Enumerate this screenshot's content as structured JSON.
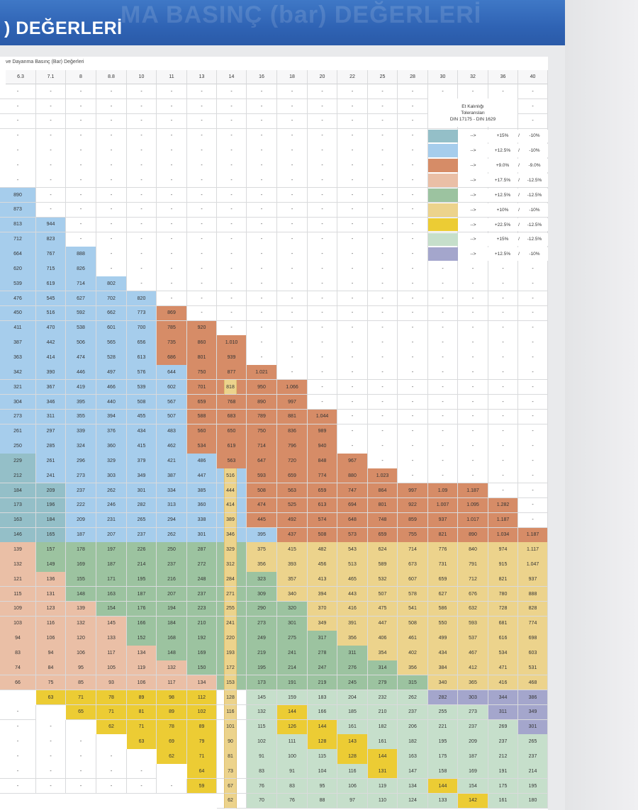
{
  "header": {
    "title": ") DEĞERLERİ",
    "ghost_title": "MA BASINÇ (bar) DEĞERLERİ"
  },
  "caption": "ve Dayanma Basınç (Bar) Değerleri",
  "columns": [
    "6.3",
    "7.1",
    "8",
    "8.8",
    "10",
    "11",
    "13",
    "14",
    "16",
    "18",
    "20",
    "22",
    "25",
    "28",
    "30",
    "32",
    "36",
    "40"
  ],
  "colors": {
    "B": "#a6cdec",
    "T": "#94bfc8",
    "O": "#d68c67",
    "P": "#eabfa6",
    "G": "#9cc3a0",
    "Y": "#ecd38c",
    "Z": "#eccc34",
    "M": "#c6dfcb",
    "V": "#a4a6cc",
    "W": "#ffffff",
    "N": "#ffffff"
  },
  "legend": {
    "title_line1": "Et Kalınlığı",
    "title_line2": "Toleransları",
    "title_line3": "DIN 17175 - DIN 1629",
    "items": [
      {
        "color": "T",
        "arrow": "-->",
        "plus": "+15%",
        "slash": "/",
        "minus": "-10%"
      },
      {
        "color": "B",
        "arrow": "-->",
        "plus": "+12.5%",
        "slash": "/",
        "minus": "-10%"
      },
      {
        "color": "O",
        "arrow": "-->",
        "plus": "+9.0%",
        "slash": "/",
        "minus": "-9.0%"
      },
      {
        "color": "P",
        "arrow": "-->",
        "plus": "+17.5%",
        "slash": "/",
        "minus": "-12.5%"
      },
      {
        "color": "G",
        "arrow": "-->",
        "plus": "+12.5%",
        "slash": "/",
        "minus": "-12.5%"
      },
      {
        "color": "Y",
        "arrow": "-->",
        "plus": "+10%",
        "slash": "/",
        "minus": "-10%"
      },
      {
        "color": "Z",
        "arrow": "-->",
        "plus": "+22.5%",
        "slash": "/",
        "minus": "-12.5%"
      },
      {
        "color": "M",
        "arrow": "-->",
        "plus": "+15%",
        "slash": "/",
        "minus": "-12.5%"
      },
      {
        "color": "V",
        "arrow": "-->",
        "plus": "+12.5%",
        "slash": "/",
        "minus": "-10%"
      }
    ]
  },
  "rows": [
    {
      "v": [
        "-",
        "-",
        "-",
        "-",
        "-",
        "-",
        "-",
        "-",
        "-",
        "-",
        "-",
        "-",
        "-",
        "-",
        "-",
        "-",
        "-",
        "-"
      ],
      "c": "WWWWWWWWWWWWWWWWWW"
    },
    {
      "v": [
        "-",
        "-",
        "-",
        "-",
        "-",
        "-",
        "-",
        "-",
        "-",
        "-",
        "-",
        "-",
        "-",
        "-",
        "",
        "",
        "",
        "-"
      ],
      "c": "WWWWWWWWWWWWWWWWWW"
    },
    {
      "v": [
        "-",
        "-",
        "-",
        "-",
        "-",
        "-",
        "-",
        "-",
        "-",
        "-",
        "-",
        "-",
        "-",
        "-",
        "",
        "",
        "",
        "-"
      ],
      "c": "WWWWWWWWWWWWWWWWWW"
    },
    {
      "v": [
        "-",
        "-",
        "-",
        "-",
        "-",
        "-",
        "-",
        "-",
        "-",
        "-",
        "-",
        "-",
        "-",
        "-",
        "",
        "",
        "",
        ""
      ],
      "c": "WWWWWWWWWWWWWWWWWW"
    },
    {
      "v": [
        "-",
        "-",
        "-",
        "-",
        "-",
        "-",
        "-",
        "-",
        "-",
        "-",
        "-",
        "-",
        "-",
        "-",
        "",
        "",
        "",
        ""
      ],
      "c": "WWWWWWWWWWWWWWWWWW"
    },
    {
      "v": [
        "-",
        "-",
        "-",
        "-",
        "-",
        "-",
        "-",
        "-",
        "-",
        "-",
        "-",
        "-",
        "-",
        "-",
        "",
        "",
        "",
        ""
      ],
      "c": "WWWWWWWWWWWWWWWWWW"
    },
    {
      "v": [
        "-",
        "-",
        "-",
        "-",
        "-",
        "-",
        "-",
        "-",
        "-",
        "-",
        "-",
        "-",
        "-",
        "-",
        "",
        "",
        "",
        ""
      ],
      "c": "WWWWWWWWWWWWWWWWWW"
    },
    {
      "v": [
        "890",
        "-",
        "-",
        "-",
        "-",
        "-",
        "-",
        "-",
        "-",
        "-",
        "-",
        "-",
        "-",
        "-",
        "",
        "",
        "",
        ""
      ],
      "c": "BWWWWWWWWWWWWWWWWW"
    },
    {
      "v": [
        "873",
        "-",
        "-",
        "-",
        "-",
        "-",
        "-",
        "-",
        "-",
        "-",
        "-",
        "-",
        "-",
        "-",
        "",
        "",
        "",
        ""
      ],
      "c": "BWWWWWWWWWWWWWWWWW"
    },
    {
      "v": [
        "813",
        "944",
        "-",
        "-",
        "-",
        "-",
        "-",
        "-",
        "-",
        "-",
        "-",
        "-",
        "-",
        "-",
        "",
        "",
        "",
        ""
      ],
      "c": "BBWWWWWWWWWWWWWWWW"
    },
    {
      "v": [
        "712",
        "823",
        "-",
        "-",
        "-",
        "-",
        "-",
        "-",
        "-",
        "-",
        "-",
        "-",
        "-",
        "-",
        "",
        "",
        "",
        ""
      ],
      "c": "BBWWWWWWWWWWWWWWWW"
    },
    {
      "v": [
        "664",
        "767",
        "888",
        "-",
        "-",
        "-",
        "-",
        "-",
        "-",
        "-",
        "-",
        "-",
        "-",
        "-",
        "",
        "",
        "",
        ""
      ],
      "c": "BBBWWWWWWWWWWWWWWW"
    },
    {
      "v": [
        "620",
        "715",
        "826",
        "-",
        "-",
        "-",
        "-",
        "-",
        "-",
        "-",
        "-",
        "-",
        "-",
        "-",
        "-",
        "-",
        "-",
        "-"
      ],
      "c": "BBBWWWWWWWWWWWWWWW"
    },
    {
      "v": [
        "539",
        "619",
        "714",
        "802",
        "-",
        "-",
        "-",
        "-",
        "-",
        "-",
        "-",
        "-",
        "-",
        "-",
        "-",
        "-",
        "-",
        "-"
      ],
      "c": "BBBBWWWWWWWWWWWWWW"
    },
    {
      "v": [
        "476",
        "545",
        "627",
        "702",
        "820",
        "-",
        "-",
        "-",
        "-",
        "-",
        "-",
        "-",
        "-",
        "-",
        "-",
        "-",
        "-",
        "-"
      ],
      "c": "BBBBBWWWWWWWWWWWWW"
    },
    {
      "v": [
        "450",
        "516",
        "592",
        "662",
        "773",
        "869",
        "-",
        "-",
        "-",
        "-",
        "-",
        "-",
        "-",
        "-",
        "-",
        "-",
        "-",
        "-"
      ],
      "c": "BBBBBOWWWWWWWWWWWW"
    },
    {
      "v": [
        "411",
        "470",
        "538",
        "601",
        "700",
        "785",
        "920",
        "-",
        "-",
        "-",
        "-",
        "-",
        "-",
        "-",
        "-",
        "-",
        "-",
        "-"
      ],
      "c": "BBBBBOOWWWWWWWWWWW"
    },
    {
      "v": [
        "387",
        "442",
        "506",
        "565",
        "656",
        "735",
        "860",
        "1.010",
        "-",
        "-",
        "-",
        "-",
        "-",
        "-",
        "-",
        "-",
        "-",
        "-"
      ],
      "c": "BBBBBOOOWWWWWWWWWW"
    },
    {
      "v": [
        "363",
        "414",
        "474",
        "528",
        "613",
        "686",
        "801",
        "939",
        "-",
        "-",
        "-",
        "-",
        "-",
        "-",
        "-",
        "-",
        "-",
        "-"
      ],
      "c": "BBBBBOOOWWWWWWWWWW"
    },
    {
      "v": [
        "342",
        "390",
        "446",
        "497",
        "576",
        "644",
        "750",
        "877",
        "1.021",
        "-",
        "-",
        "-",
        "-",
        "-",
        "-",
        "-",
        "-",
        "-"
      ],
      "c": "BBBBBBOOOWWWWWWWWW"
    },
    {
      "v": [
        "321",
        "367",
        "419",
        "466",
        "539",
        "602",
        "701",
        "818",
        "950",
        "1.066",
        "-",
        "-",
        "-",
        "-",
        "-",
        "-",
        "-",
        "-"
      ],
      "c": "BBBBBBOYOOWWWWWWWW"
    },
    {
      "v": [
        "304",
        "346",
        "395",
        "440",
        "508",
        "567",
        "659",
        "768",
        "890",
        "997",
        "-",
        "-",
        "-",
        "-",
        "-",
        "-",
        "-",
        "-"
      ],
      "c": "BBBBBBOOOOWWWWWWWW"
    },
    {
      "v": [
        "273",
        "311",
        "355",
        "394",
        "455",
        "507",
        "588",
        "683",
        "789",
        "881",
        "1.044",
        "-",
        "-",
        "-",
        "-",
        "-",
        "-",
        "-"
      ],
      "c": "BBBBBBOOOOOWWWWWWW"
    },
    {
      "v": [
        "261",
        "297",
        "339",
        "376",
        "434",
        "483",
        "560",
        "650",
        "750",
        "836",
        "989",
        "-",
        "-",
        "-",
        "-",
        "-",
        "-",
        "-"
      ],
      "c": "BBBBBBOOOOOWWWWWWW"
    },
    {
      "v": [
        "250",
        "285",
        "324",
        "360",
        "415",
        "462",
        "534",
        "619",
        "714",
        "796",
        "940",
        "-",
        "-",
        "-",
        "-",
        "-",
        "-",
        "-"
      ],
      "c": "BBBBBBOOOOOWWWWWWW"
    },
    {
      "v": [
        "229",
        "261",
        "296",
        "329",
        "379",
        "421",
        "486",
        "563",
        "647",
        "720",
        "848",
        "967",
        "-",
        "-",
        "-",
        "-",
        "-",
        "-"
      ],
      "c": "TBBBBBBOOOOOWWWWWW"
    },
    {
      "v": [
        "212",
        "241",
        "273",
        "303",
        "349",
        "387",
        "447",
        "516",
        "593",
        "659",
        "774",
        "880",
        "1.023",
        "-",
        "-",
        "-",
        "-",
        "-"
      ],
      "c": "TBBBBBBYOOOOOWWWWW"
    },
    {
      "v": [
        "184",
        "209",
        "237",
        "262",
        "301",
        "334",
        "385",
        "444",
        "508",
        "563",
        "659",
        "747",
        "864",
        "997",
        "1.09",
        "1.187",
        "-",
        "-"
      ],
      "c": "TTBBBBBYOOOOOOOOWW"
    },
    {
      "v": [
        "173",
        "196",
        "222",
        "246",
        "282",
        "313",
        "360",
        "414",
        "474",
        "525",
        "613",
        "694",
        "801",
        "922",
        "1.007",
        "1.095",
        "1.282",
        "-"
      ],
      "c": "TTBBBBBYOOOOOOOOOW"
    },
    {
      "v": [
        "163",
        "184",
        "209",
        "231",
        "265",
        "294",
        "338",
        "389",
        "445",
        "492",
        "574",
        "648",
        "748",
        "859",
        "937",
        "1.017",
        "1.187",
        "-"
      ],
      "c": "TTBBBBBYOOOOOOOOOW"
    },
    {
      "v": [
        "146",
        "165",
        "187",
        "207",
        "237",
        "262",
        "301",
        "346",
        "395",
        "437",
        "508",
        "573",
        "659",
        "755",
        "821",
        "890",
        "1.034",
        "1.187"
      ],
      "c": "TTBBBBBYBOOOOOOOOO"
    },
    {
      "v": [
        "139",
        "157",
        "178",
        "197",
        "226",
        "250",
        "287",
        "329",
        "375",
        "415",
        "482",
        "543",
        "624",
        "714",
        "776",
        "840",
        "974",
        "1.117"
      ],
      "c": "PGGGGGGYYYYYYYYYYY"
    },
    {
      "v": [
        "132",
        "149",
        "169",
        "187",
        "214",
        "237",
        "272",
        "312",
        "356",
        "393",
        "456",
        "513",
        "589",
        "673",
        "731",
        "791",
        "915",
        "1.047"
      ],
      "c": "PGGGGGGYYYYYYYYYYY"
    },
    {
      "v": [
        "121",
        "136",
        "155",
        "171",
        "195",
        "216",
        "248",
        "284",
        "323",
        "357",
        "413",
        "465",
        "532",
        "607",
        "659",
        "712",
        "821",
        "937"
      ],
      "c": "PPGGGGGYGYYYYYYYYY"
    },
    {
      "v": [
        "115",
        "131",
        "148",
        "163",
        "187",
        "207",
        "237",
        "271",
        "309",
        "340",
        "394",
        "443",
        "507",
        "578",
        "627",
        "676",
        "780",
        "888"
      ],
      "c": "PPGGGGGYGYYYYYYYYY"
    },
    {
      "v": [
        "109",
        "123",
        "139",
        "154",
        "176",
        "194",
        "223",
        "255",
        "290",
        "320",
        "370",
        "416",
        "475",
        "541",
        "586",
        "632",
        "728",
        "828"
      ],
      "c": "PPPGGGGYGGYYYYYYYY"
    },
    {
      "v": [
        "103",
        "116",
        "132",
        "145",
        "166",
        "184",
        "210",
        "241",
        "273",
        "301",
        "349",
        "391",
        "447",
        "508",
        "550",
        "593",
        "681",
        "774"
      ],
      "c": "PPPPGGGYGGYYYYYYYY"
    },
    {
      "v": [
        "94",
        "106",
        "120",
        "133",
        "152",
        "168",
        "192",
        "220",
        "249",
        "275",
        "317",
        "356",
        "406",
        "461",
        "499",
        "537",
        "616",
        "698"
      ],
      "c": "PPPPGGGYGGGYYYYYYY"
    },
    {
      "v": [
        "83",
        "94",
        "106",
        "117",
        "134",
        "148",
        "169",
        "193",
        "219",
        "241",
        "278",
        "311",
        "354",
        "402",
        "434",
        "467",
        "534",
        "603"
      ],
      "c": "PPPPPGGYGGGGYYYYYY"
    },
    {
      "v": [
        "74",
        "84",
        "95",
        "105",
        "119",
        "132",
        "150",
        "172",
        "195",
        "214",
        "247",
        "276",
        "314",
        "356",
        "384",
        "412",
        "471",
        "531"
      ],
      "c": "PPPPPPGYGGGGGYYYYY"
    },
    {
      "v": [
        "66",
        "75",
        "85",
        "93",
        "106",
        "117",
        "134",
        "153",
        "173",
        "191",
        "219",
        "245",
        "279",
        "315",
        "340",
        "365",
        "416",
        "468"
      ],
      "c": "PPPPPPPYGGGGGGYYYY"
    },
    {
      "v": [
        "",
        "63",
        "71",
        "78",
        "89",
        "98",
        "112",
        "128",
        "145",
        "159",
        "183",
        "204",
        "232",
        "262",
        "282",
        "303",
        "344",
        "386"
      ],
      "c": "NZZZZZZYMMMMMMVVVV"
    },
    {
      "v": [
        "-",
        "",
        "65",
        "71",
        "81",
        "89",
        "102",
        "116",
        "132",
        "144",
        "166",
        "185",
        "210",
        "237",
        "255",
        "273",
        "311",
        "349"
      ],
      "c": "WNZZZZZYMZMMMMMMVV"
    },
    {
      "v": [
        "-",
        "-",
        "",
        "62",
        "71",
        "78",
        "89",
        "101",
        "115",
        "126",
        "144",
        "161",
        "182",
        "206",
        "221",
        "237",
        "269",
        "301"
      ],
      "c": "WWNZZZZYMZZMMMMMMV"
    },
    {
      "v": [
        "-",
        "-",
        "-",
        "",
        "63",
        "69",
        "79",
        "90",
        "102",
        "111",
        "128",
        "143",
        "161",
        "182",
        "195",
        "209",
        "237",
        "265"
      ],
      "c": "WWWNZZZYMMZZMMMMMM"
    },
    {
      "v": [
        "-",
        "-",
        "-",
        "-",
        "",
        "62",
        "71",
        "81",
        "91",
        "100",
        "115",
        "128",
        "144",
        "163",
        "175",
        "187",
        "212",
        "237"
      ],
      "c": "WWWWNZZYMMMZZMMMMM"
    },
    {
      "v": [
        "-",
        "-",
        "-",
        "-",
        "-",
        "",
        "64",
        "73",
        "83",
        "91",
        "104",
        "116",
        "131",
        "147",
        "158",
        "169",
        "191",
        "214"
      ],
      "c": "WWWWWNZYMMMMZMMMMM"
    },
    {
      "v": [
        "-",
        "-",
        "-",
        "-",
        "-",
        "-",
        "59",
        "67",
        "76",
        "83",
        "95",
        "106",
        "119",
        "134",
        "144",
        "154",
        "175",
        "195"
      ],
      "c": "WWWWWWZYMMMMMMZMMM"
    },
    {
      "v": [
        "",
        "",
        "",
        "",
        "",
        "",
        "",
        "62",
        "70",
        "76",
        "88",
        "97",
        "110",
        "124",
        "133",
        "142",
        "161",
        "180"
      ],
      "c": "NNNNNNNYMMMMMMMZMM"
    }
  ]
}
